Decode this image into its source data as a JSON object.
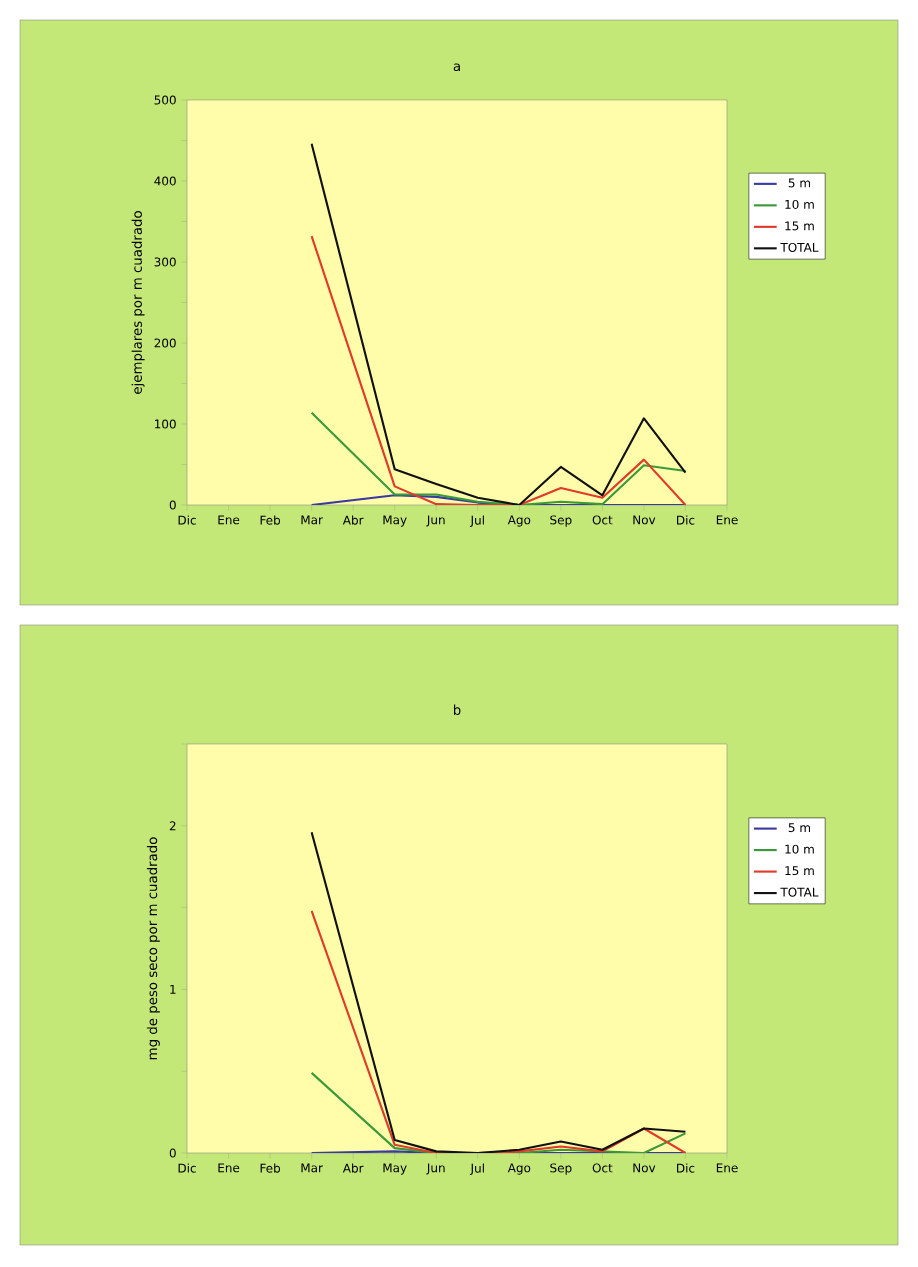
{
  "chart_data": [
    {
      "type": "line",
      "title": "a",
      "ylabel": "ejemplares por m cuadrado",
      "categories": [
        "Dic",
        "Ene",
        "Feb",
        "Mar",
        "Abr",
        "May",
        "Jun",
        "Jul",
        "Ago",
        "Sep",
        "Oct",
        "Nov",
        "Dic",
        "Ene"
      ],
      "series": [
        {
          "name": "5 m",
          "color": "#3a3aa0",
          "values": [
            null,
            null,
            null,
            0,
            null,
            12,
            10,
            3,
            0,
            0,
            0,
            0,
            0,
            null
          ]
        },
        {
          "name": "10 m",
          "color": "#3a9a3a",
          "values": [
            null,
            null,
            null,
            114,
            null,
            13,
            13,
            4,
            0,
            4,
            1,
            49,
            42,
            null
          ]
        },
        {
          "name": "15 m",
          "color": "#e03a2a",
          "values": [
            null,
            null,
            null,
            332,
            null,
            23,
            1,
            0,
            0,
            21,
            9,
            56,
            0,
            null
          ]
        },
        {
          "name": "TOTAL",
          "color": "#111111",
          "values": [
            null,
            null,
            null,
            446,
            null,
            44,
            26,
            9,
            0,
            47,
            12,
            107,
            40,
            null
          ]
        }
      ],
      "ylim": [
        0,
        500
      ],
      "yticks": [
        0,
        {
          "value": 50,
          "label": null
        },
        100,
        {
          "value": 150,
          "label": null
        },
        200,
        {
          "value": 250,
          "label": null
        },
        300,
        {
          "value": 350,
          "label": null
        },
        400,
        {
          "value": 450,
          "label": null
        },
        500
      ],
      "legend": "right",
      "grid": false,
      "marker": "none",
      "line_style": "solid"
    },
    {
      "type": "line",
      "title": "b",
      "ylabel": "mg de peso seco por m cuadrado",
      "categories": [
        "Dic",
        "Ene",
        "Feb",
        "Mar",
        "Abr",
        "May",
        "Jun",
        "Jul",
        "Ago",
        "Sep",
        "Oct",
        "Nov",
        "Dic",
        "Ene"
      ],
      "series": [
        {
          "name": "5 m",
          "color": "#3a3aa0",
          "values": [
            null,
            null,
            null,
            0,
            null,
            0.01,
            0,
            0,
            0,
            0,
            0,
            0,
            0,
            null
          ]
        },
        {
          "name": "10 m",
          "color": "#3a9a3a",
          "values": [
            null,
            null,
            null,
            0.49,
            null,
            0.03,
            0,
            0,
            0,
            0.02,
            0.01,
            0,
            0.12,
            null
          ]
        },
        {
          "name": "15 m",
          "color": "#e03a2a",
          "values": [
            null,
            null,
            null,
            1.48,
            null,
            0.05,
            0,
            0,
            0.01,
            0.04,
            0.01,
            0.15,
            0,
            null
          ]
        },
        {
          "name": "TOTAL",
          "color": "#111111",
          "values": [
            null,
            null,
            null,
            1.96,
            null,
            0.08,
            0.01,
            0,
            0.02,
            0.07,
            0.02,
            0.15,
            0.13,
            null
          ]
        }
      ],
      "ylim": [
        0,
        2.5
      ],
      "yticks": [
        0,
        {
          "value": 0.5,
          "label": null
        },
        1,
        {
          "value": 1.5,
          "label": null
        },
        2,
        {
          "value": 2.5,
          "label": null
        }
      ],
      "legend": "right",
      "grid": false,
      "marker": "none",
      "line_style": "solid"
    }
  ]
}
